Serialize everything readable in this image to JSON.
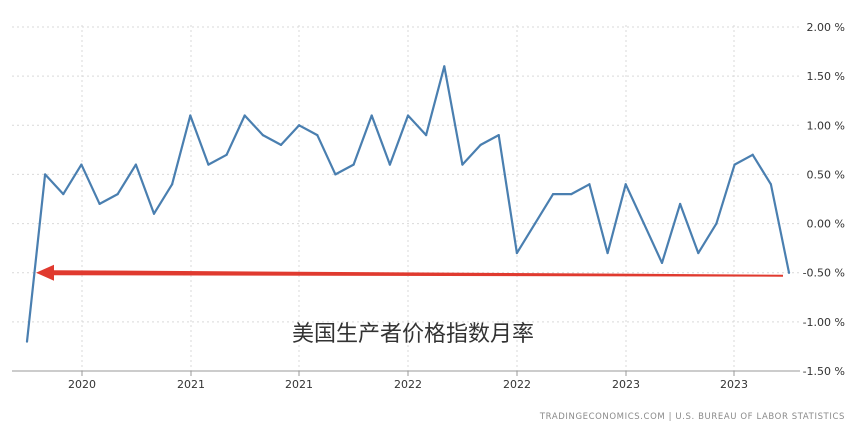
{
  "chart_data": {
    "type": "line",
    "title": "美国生产者价格指数月率",
    "xlabel": "",
    "ylabel": "",
    "x_tick_labels": [
      "2020",
      "2021",
      "2021",
      "2022",
      "2022",
      "2023",
      "2023"
    ],
    "y_tick_labels": [
      "2.00 %",
      "1.50 %",
      "1.00 %",
      "0.50 %",
      "0.00 %",
      "-0.50 %",
      "-1.00 %",
      "-1.50 %"
    ],
    "y_ticks": [
      2.0,
      1.5,
      1.0,
      0.5,
      0.0,
      -0.5,
      -1.0,
      -1.5
    ],
    "ylim": [
      -1.5,
      2.0
    ],
    "grid": true,
    "series": [
      {
        "color": "#4a7fb0",
        "values": [
          -1.2,
          0.5,
          0.3,
          0.6,
          0.2,
          0.3,
          0.6,
          0.1,
          0.4,
          1.1,
          0.6,
          0.7,
          1.1,
          0.9,
          0.8,
          1.0,
          0.9,
          0.5,
          0.6,
          1.1,
          0.6,
          1.1,
          0.9,
          1.6,
          0.6,
          0.8,
          0.9,
          -0.3,
          0.0,
          0.3,
          0.3,
          0.4,
          -0.3,
          0.4,
          0.0,
          -0.4,
          0.2,
          -0.3,
          0.0,
          0.6,
          0.7,
          0.4,
          -0.5
        ]
      }
    ],
    "annotation": {
      "type": "arrow",
      "color": "#e03a2f",
      "from_value": -0.5,
      "to_value": -0.5
    },
    "source": "TRADINGECONOMICS.COM  |  U.S. BUREAU OF LABOR STATISTICS"
  }
}
